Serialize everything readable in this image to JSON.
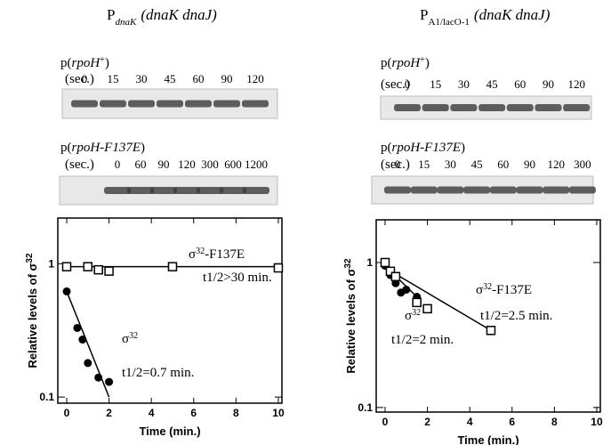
{
  "panels": [
    {
      "heading": [
        "P",
        "dnaK",
        "(dnaK dnaJ)"
      ],
      "gels": [
        {
          "label": [
            "p(",
            "rpoH",
            "+",
            ")"
          ],
          "unit": "(sec.)",
          "lanes": [
            "0",
            "15",
            "30",
            "45",
            "60",
            "90",
            "120"
          ]
        },
        {
          "label": [
            "p(",
            "rpoH-F137E",
            ")"
          ],
          "unit": "(sec.)",
          "lanes": [
            "0",
            "60",
            "90",
            "120",
            "300",
            "600",
            "1200"
          ]
        }
      ]
    },
    {
      "heading": [
        "P",
        "A1/lacO-1",
        "(dnaK dnaJ)"
      ],
      "gels": [
        {
          "label": [
            "p(",
            "rpoH",
            "+",
            ")"
          ],
          "unit": "(sec.)",
          "lanes": [
            "0",
            "15",
            "30",
            "45",
            "60",
            "90",
            "120"
          ]
        },
        {
          "label": [
            "p(",
            "rpoH-F137E",
            ")"
          ],
          "unit": "(sec.)",
          "lanes": [
            "0",
            "15",
            "30",
            "45",
            "60",
            "90",
            "120",
            "300"
          ]
        }
      ]
    }
  ],
  "chart_data": [
    {
      "type": "scatter",
      "ylabel": [
        "Relative levels of σ",
        "32"
      ],
      "xlabel": "Time (min.)",
      "xlim": [
        -0.42,
        10.17
      ],
      "ylim": [
        0.09,
        2.2
      ],
      "log_y": true,
      "xticks": [
        0,
        2,
        4,
        6,
        8,
        10
      ],
      "yticks": [
        0.1,
        1
      ],
      "series": [
        {
          "marker": "square",
          "color": "#000000",
          "x": [
            0,
            1,
            1.5,
            2,
            5,
            10
          ],
          "values": [
            0.95,
            0.95,
            0.9,
            0.88,
            0.95,
            0.93
          ],
          "fit": {
            "x": [
              0,
              10
            ],
            "values": [
              0.95,
              0.95
            ]
          }
        },
        {
          "marker": "circle",
          "color": "#000000",
          "x": [
            0,
            0.5,
            0.75,
            1,
            1.5,
            2
          ],
          "values": [
            0.62,
            0.33,
            0.27,
            0.18,
            0.14,
            0.13
          ],
          "fit": {
            "x": [
              0,
              2
            ],
            "values": [
              0.62,
              0.1
            ]
          }
        }
      ],
      "annotations": [
        [
          "σ",
          "32",
          "-F137E"
        ],
        [
          "t1/2>30 min."
        ],
        [
          "σ",
          "32"
        ],
        [
          "t1/2=0.7 min."
        ]
      ]
    },
    {
      "type": "scatter",
      "ylabel": [
        "Relative levels of σ",
        "32"
      ],
      "xlabel": "Time (min.)",
      "xlim": [
        -0.42,
        10.17
      ],
      "ylim": [
        0.093,
        1.97
      ],
      "log_y": true,
      "xticks": [
        0,
        2,
        4,
        6,
        8,
        10
      ],
      "yticks": [
        0.1,
        1
      ],
      "series": [
        {
          "marker": "circle",
          "color": "#000000",
          "x": [
            0,
            0.25,
            0.5,
            0.75,
            1,
            1.5
          ],
          "values": [
            0.95,
            0.82,
            0.72,
            0.62,
            0.65,
            0.58
          ],
          "fit": {
            "x": [
              0,
              1.5
            ],
            "values": [
              0.95,
              0.58
            ]
          }
        },
        {
          "marker": "square",
          "color": "#000000",
          "x": [
            0,
            0.25,
            0.5,
            1.5,
            2,
            5
          ],
          "values": [
            1,
            0.87,
            0.8,
            0.53,
            0.48,
            0.34
          ],
          "fit": {
            "x": [
              0,
              5
            ],
            "values": [
              0.92,
              0.34
            ]
          }
        }
      ],
      "annotations": [
        [
          "σ",
          "32",
          "-F137E"
        ],
        [
          "t1/2=2.5 min."
        ],
        [
          "σ",
          "32"
        ],
        [
          "t1/2=2 min."
        ]
      ]
    }
  ]
}
